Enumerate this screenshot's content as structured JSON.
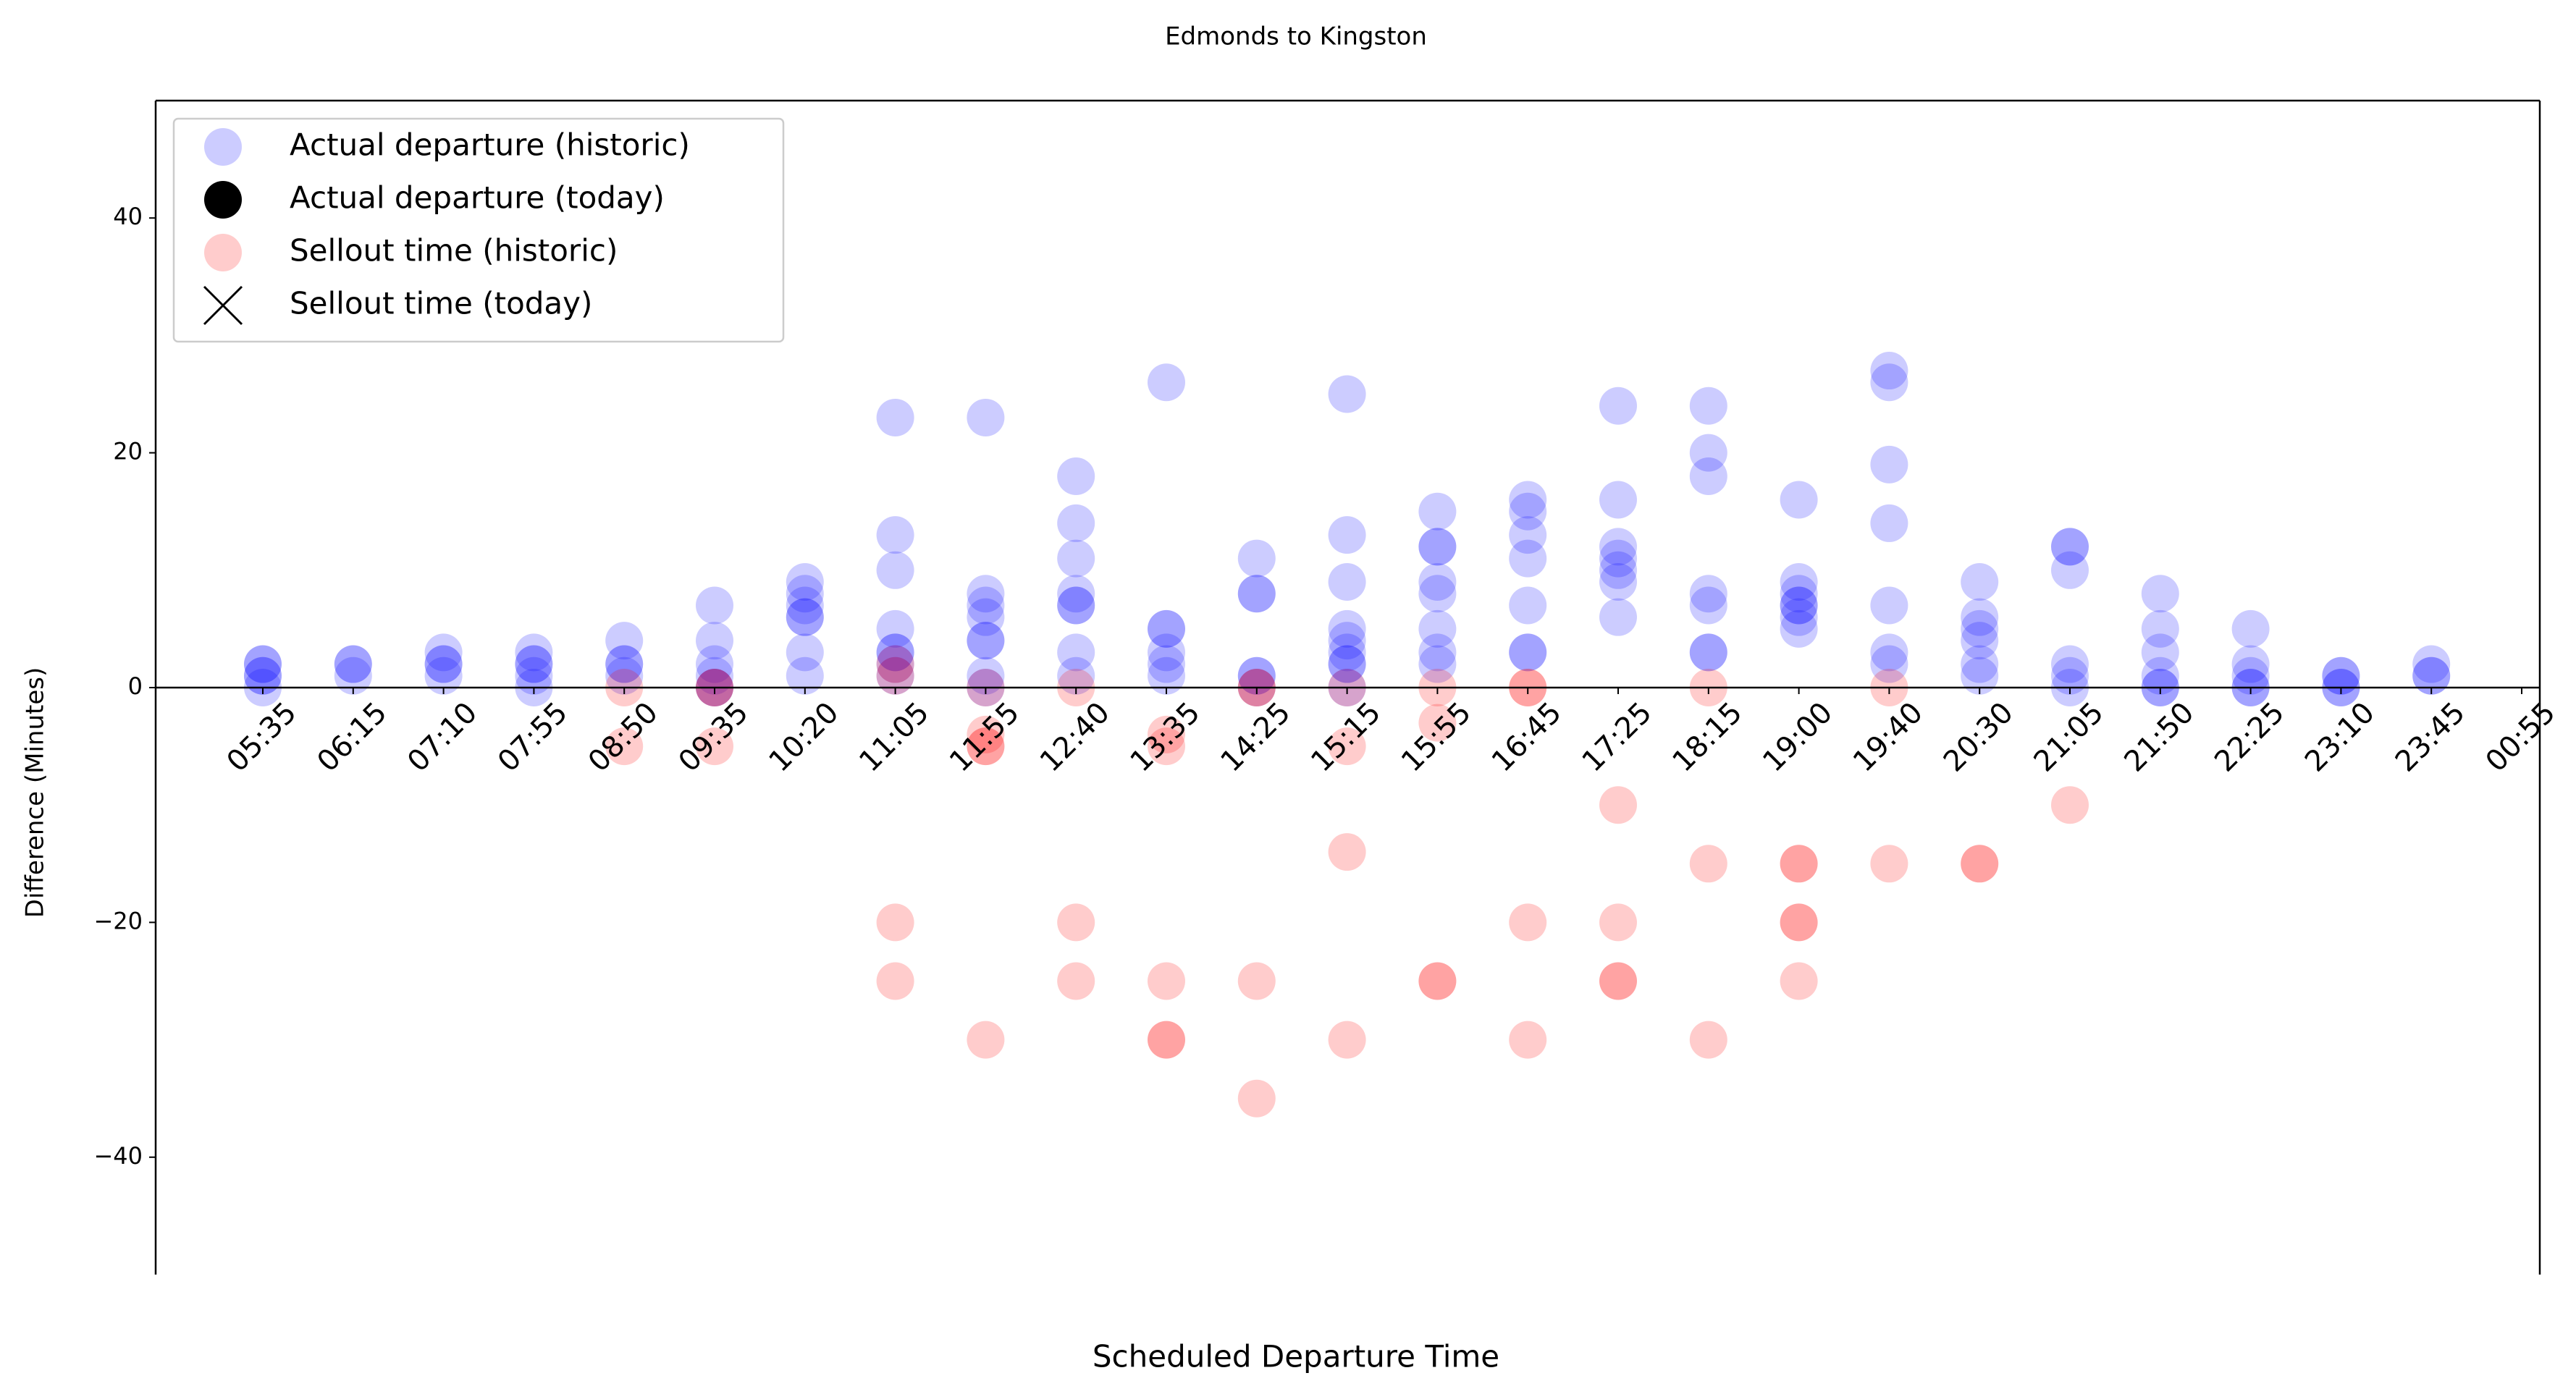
{
  "chart_data": {
    "type": "scatter",
    "title": "Edmonds to Kingston",
    "x_label": "Scheduled Departure Time",
    "y_label": "Difference (Minutes)",
    "categories": [
      "05:35",
      "06:15",
      "07:10",
      "07:55",
      "08:50",
      "09:35",
      "10:20",
      "11:05",
      "11:55",
      "12:40",
      "13:35",
      "14:25",
      "15:15",
      "15:55",
      "16:45",
      "17:25",
      "18:15",
      "19:00",
      "19:40",
      "20:30",
      "21:05",
      "21:50",
      "22:25",
      "23:10",
      "23:45",
      "00:55"
    ],
    "ylim": [
      -50,
      50
    ],
    "yticks": [
      {
        "value": -40,
        "label": "−40"
      },
      {
        "value": -20,
        "label": "−20"
      },
      0,
      20,
      40
    ],
    "legend": "upper left",
    "series": [
      {
        "name": "Actual departure (historic)",
        "color": "#0000ff",
        "alpha": 0.2,
        "marker": "circle",
        "x": [
          "05:35",
          "05:35",
          "05:35",
          "05:35",
          "05:35",
          "06:15",
          "06:15",
          "06:15",
          "07:10",
          "07:10",
          "07:10",
          "07:10",
          "07:55",
          "07:55",
          "07:55",
          "07:55",
          "07:55",
          "08:50",
          "08:50",
          "08:50",
          "08:50",
          "09:35",
          "09:35",
          "09:35",
          "09:35",
          "09:35",
          "09:35",
          "10:20",
          "10:20",
          "10:20",
          "10:20",
          "10:20",
          "10:20",
          "10:20",
          "11:05",
          "11:05",
          "11:05",
          "11:05",
          "11:05",
          "11:05",
          "11:05",
          "11:05",
          "11:55",
          "11:55",
          "11:55",
          "11:55",
          "11:55",
          "11:55",
          "11:55",
          "11:55",
          "12:40",
          "12:40",
          "12:40",
          "12:40",
          "12:40",
          "12:40",
          "12:40",
          "12:40",
          "13:35",
          "13:35",
          "13:35",
          "13:35",
          "13:35",
          "13:35",
          "14:25",
          "14:25",
          "14:25",
          "14:25",
          "14:25",
          "14:25",
          "15:15",
          "15:15",
          "15:15",
          "15:15",
          "15:15",
          "15:15",
          "15:15",
          "15:15",
          "15:15",
          "15:55",
          "15:55",
          "15:55",
          "15:55",
          "15:55",
          "15:55",
          "15:55",
          "15:55",
          "16:45",
          "16:45",
          "16:45",
          "16:45",
          "16:45",
          "16:45",
          "16:45",
          "17:25",
          "17:25",
          "17:25",
          "17:25",
          "17:25",
          "17:25",
          "17:25",
          "18:15",
          "18:15",
          "18:15",
          "18:15",
          "18:15",
          "18:15",
          "18:15",
          "19:00",
          "19:00",
          "19:00",
          "19:00",
          "19:00",
          "19:00",
          "19:00",
          "19:40",
          "19:40",
          "19:40",
          "19:40",
          "19:40",
          "19:40",
          "19:40",
          "20:30",
          "20:30",
          "20:30",
          "20:30",
          "20:30",
          "20:30",
          "21:05",
          "21:05",
          "21:05",
          "21:05",
          "21:05",
          "21:05",
          "21:50",
          "21:50",
          "21:50",
          "21:50",
          "21:50",
          "21:50",
          "22:25",
          "22:25",
          "22:25",
          "22:25",
          "22:25",
          "23:10",
          "23:10",
          "23:10",
          "23:10",
          "23:45",
          "23:45",
          "23:45"
        ],
        "values": [
          0,
          1,
          2,
          2,
          1,
          1,
          2,
          2,
          1,
          2,
          3,
          2,
          0,
          1,
          2,
          3,
          2,
          1,
          2,
          4,
          2,
          0,
          1,
          2,
          4,
          7,
          0,
          1,
          3,
          6,
          7,
          8,
          9,
          6,
          1,
          2,
          3,
          5,
          10,
          13,
          23,
          3,
          0,
          1,
          4,
          6,
          7,
          8,
          23,
          4,
          1,
          3,
          7,
          8,
          11,
          14,
          18,
          7,
          1,
          2,
          3,
          5,
          26,
          5,
          0,
          1,
          8,
          11,
          8,
          1,
          0,
          2,
          3,
          4,
          5,
          9,
          13,
          25,
          2,
          2,
          3,
          5,
          8,
          9,
          12,
          15,
          12,
          3,
          7,
          11,
          13,
          15,
          16,
          3,
          6,
          9,
          10,
          11,
          12,
          16,
          24,
          3,
          7,
          8,
          18,
          20,
          24,
          3,
          5,
          6,
          7,
          8,
          9,
          16,
          7,
          2,
          3,
          7,
          14,
          19,
          26,
          27,
          1,
          2,
          4,
          5,
          6,
          9,
          0,
          1,
          2,
          10,
          12,
          12,
          0,
          1,
          3,
          5,
          8,
          0,
          0,
          1,
          2,
          5,
          0,
          0,
          1,
          1,
          0,
          1,
          2,
          1
        ]
      },
      {
        "name": "Actual departure (today)",
        "color": "#000000",
        "alpha": 1,
        "marker": "circle",
        "x": [],
        "values": []
      },
      {
        "name": "Sellout time (historic)",
        "color": "#ff0000",
        "alpha": 0.2,
        "marker": "circle",
        "x": [
          "08:50",
          "08:50",
          "09:35",
          "09:35",
          "09:35",
          "11:05",
          "11:05",
          "11:05",
          "11:05",
          "11:55",
          "11:55",
          "11:55",
          "11:55",
          "11:55",
          "12:40",
          "12:40",
          "12:40",
          "13:35",
          "13:35",
          "13:35",
          "13:35",
          "13:35",
          "14:25",
          "14:25",
          "14:25",
          "14:25",
          "15:15",
          "15:15",
          "15:15",
          "15:15",
          "15:55",
          "15:55",
          "15:55",
          "15:55",
          "16:45",
          "16:45",
          "16:45",
          "16:45",
          "17:25",
          "17:25",
          "17:25",
          "17:25",
          "18:15",
          "18:15",
          "18:15",
          "19:00",
          "19:00",
          "19:00",
          "19:00",
          "19:00",
          "19:40",
          "19:40",
          "20:30",
          "20:30",
          "21:05"
        ],
        "values": [
          0,
          -5,
          0,
          -5,
          0,
          1,
          2,
          -20,
          -25,
          0,
          -4,
          -5,
          -30,
          -5,
          0,
          -20,
          -25,
          -4,
          -5,
          -25,
          -30,
          -30,
          0,
          -25,
          -35,
          0,
          0,
          -5,
          -14,
          -30,
          0,
          -3,
          -25,
          -25,
          0,
          0,
          -20,
          -30,
          -10,
          -20,
          -25,
          -25,
          0,
          -15,
          -30,
          -15,
          -15,
          -20,
          -20,
          -25,
          0,
          -15,
          -15,
          -15,
          -10
        ]
      },
      {
        "name": "Sellout time (today)",
        "color": "#000000",
        "alpha": 1,
        "marker": "x",
        "x": [],
        "values": []
      }
    ]
  }
}
